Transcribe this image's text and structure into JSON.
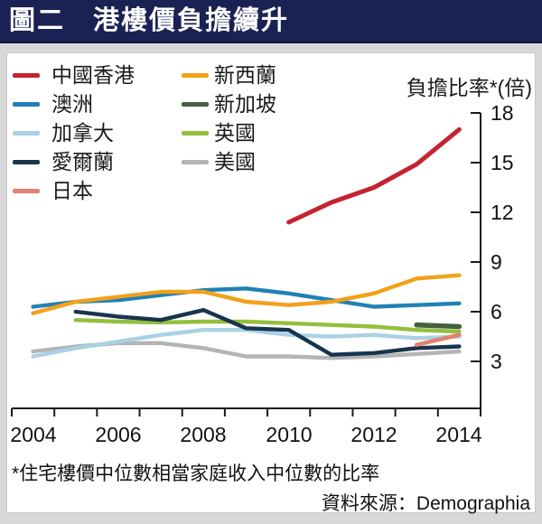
{
  "header": {
    "title": "圖二　港樓價負擔續升"
  },
  "legend": {
    "items": [
      {
        "label": "中國香港",
        "color": "#c42431"
      },
      {
        "label": "澳洲",
        "color": "#1f81b6"
      },
      {
        "label": "加拿大",
        "color": "#a9d2e4"
      },
      {
        "label": "愛爾蘭",
        "color": "#18344e"
      },
      {
        "label": "日本",
        "color": "#e2826e"
      },
      {
        "label": "新西蘭",
        "color": "#f2a11b"
      },
      {
        "label": "新加坡",
        "color": "#44603e"
      },
      {
        "label": "英國",
        "color": "#94bf3d"
      },
      {
        "label": "美國",
        "color": "#b4b4b6"
      }
    ]
  },
  "chart_data": {
    "type": "line",
    "title": "港樓價負擔續升",
    "ylabel": "負擔比率*(倍)",
    "ylim": [
      3,
      18
    ],
    "ytick_labels": [
      "18",
      "15",
      "12",
      "9",
      "6",
      "3"
    ],
    "yticks": [
      18,
      15,
      12,
      9,
      6,
      3
    ],
    "xlim": [
      2004,
      2015
    ],
    "xtick_labels": [
      "2004",
      "2006",
      "2008",
      "2010",
      "2012",
      "2014"
    ],
    "xtick_years": [
      2004,
      2006,
      2008,
      2010,
      2012,
      2014
    ],
    "grid": false,
    "legend_position": "top-left",
    "series": [
      {
        "name": "中國香港",
        "color": "#c42431",
        "x": [
          2010,
          2011,
          2012,
          2013,
          2014
        ],
        "values": [
          11.4,
          12.6,
          13.5,
          14.9,
          17.0
        ]
      },
      {
        "name": "澳洲",
        "color": "#1f81b6",
        "x": [
          2004,
          2005,
          2006,
          2007,
          2008,
          2009,
          2010,
          2011,
          2012,
          2013,
          2014
        ],
        "values": [
          6.3,
          6.6,
          6.7,
          7.0,
          7.3,
          7.4,
          7.1,
          6.7,
          6.3,
          6.4,
          6.5
        ]
      },
      {
        "name": "加拿大",
        "color": "#a9d2e4",
        "x": [
          2004,
          2005,
          2006,
          2007,
          2008,
          2009,
          2010,
          2011,
          2012,
          2013,
          2014
        ],
        "values": [
          3.3,
          3.8,
          4.2,
          4.6,
          4.9,
          4.9,
          4.6,
          4.5,
          4.6,
          4.4,
          4.5
        ]
      },
      {
        "name": "愛爾蘭",
        "color": "#18344e",
        "x": [
          2005,
          2006,
          2007,
          2008,
          2009,
          2010,
          2011,
          2012,
          2013,
          2014
        ],
        "values": [
          6.0,
          5.7,
          5.5,
          6.1,
          5.0,
          4.9,
          3.4,
          3.5,
          3.8,
          3.9
        ]
      },
      {
        "name": "日本",
        "color": "#e2826e",
        "x": [
          2013,
          2014
        ],
        "values": [
          4.0,
          4.6
        ]
      },
      {
        "name": "新西蘭",
        "color": "#f2a11b",
        "x": [
          2004,
          2005,
          2006,
          2007,
          2008,
          2009,
          2010,
          2011,
          2012,
          2013,
          2014
        ],
        "values": [
          5.9,
          6.6,
          6.9,
          7.2,
          7.2,
          6.6,
          6.4,
          6.6,
          7.1,
          8.0,
          8.2
        ]
      },
      {
        "name": "新加坡",
        "color": "#44603e",
        "x": [
          2013,
          2014
        ],
        "values": [
          5.2,
          5.1
        ]
      },
      {
        "name": "英國",
        "color": "#94bf3d",
        "x": [
          2005,
          2006,
          2007,
          2008,
          2009,
          2010,
          2011,
          2012,
          2013,
          2014
        ],
        "values": [
          5.5,
          5.4,
          5.35,
          5.4,
          5.4,
          5.3,
          5.2,
          5.1,
          4.9,
          4.8
        ]
      },
      {
        "name": "美國",
        "color": "#b4b4b6",
        "x": [
          2004,
          2005,
          2006,
          2007,
          2008,
          2009,
          2010,
          2011,
          2012,
          2013,
          2014
        ],
        "values": [
          3.6,
          3.9,
          4.1,
          4.1,
          3.8,
          3.3,
          3.3,
          3.2,
          3.3,
          3.45,
          3.6
        ]
      }
    ]
  },
  "footnote": {
    "text": "*住宅樓價中位數相當家庭收入中位數的比率"
  },
  "source": {
    "text": "資料來源：Demographia"
  }
}
